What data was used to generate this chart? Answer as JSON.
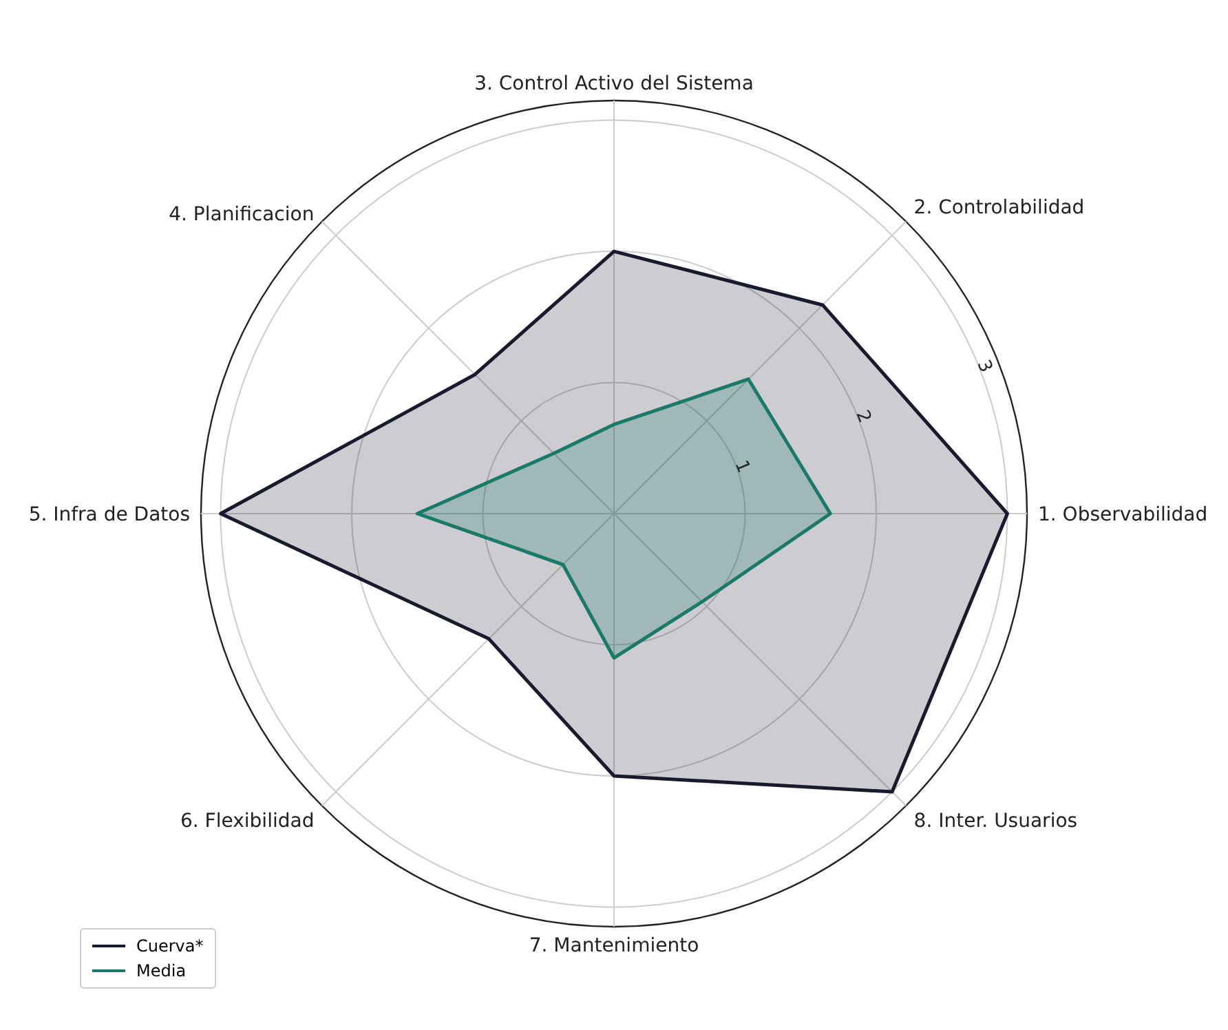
{
  "chart_data": {
    "type": "radar",
    "categories": [
      "3. Control Activo del Sistema",
      "2. Controlabilidad",
      "1. Observabilidad",
      "8. Inter. Usuarios",
      "7. Mantenimiento",
      "6. Flexibilidad",
      "5. Infra de Datos",
      "4. Planificacion"
    ],
    "series": [
      {
        "name": "Cuerva*",
        "color": "#1a1a2e",
        "values": [
          2.0,
          2.25,
          3.0,
          3.0,
          2.0,
          1.35,
          3.0,
          1.5
        ]
      },
      {
        "name": "Media",
        "color": "#1a7a6a",
        "values": [
          0.68,
          1.45,
          1.65,
          0.95,
          1.1,
          0.55,
          1.5,
          0.65
        ]
      }
    ],
    "ylim": [
      0,
      3.15
    ],
    "yticks": [
      1,
      2,
      3
    ],
    "grid": true,
    "legend": "bottom left"
  }
}
